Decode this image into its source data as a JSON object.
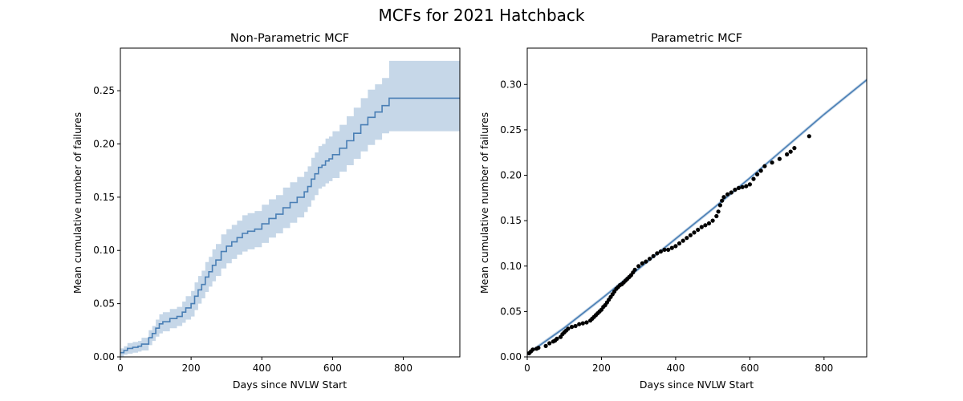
{
  "figure": {
    "title": "MCFs for 2021 Hatchback"
  },
  "colors": {
    "line": "#4a7fb5",
    "band": "#c6d7e8",
    "points": "#000000",
    "axis": "#000000"
  },
  "chart_data": [
    {
      "type": "line",
      "title": "Non-Parametric MCF",
      "xlabel": "Days since NVLW Start",
      "ylabel": "Mean cumulative number of failures",
      "xlim": [
        0,
        960
      ],
      "ylim": [
        0,
        0.29
      ],
      "xticks": [
        0,
        200,
        400,
        600,
        800
      ],
      "yticks": [
        0.0,
        0.05,
        0.1,
        0.15,
        0.2,
        0.25
      ],
      "xtick_labels": [
        "0",
        "200",
        "400",
        "600",
        "800"
      ],
      "ytick_labels": [
        "0.00",
        "0.05",
        "0.10",
        "0.15",
        "0.20",
        "0.25"
      ],
      "grid": false,
      "series": [
        {
          "style": "step",
          "x": [
            0,
            10,
            20,
            35,
            50,
            60,
            80,
            90,
            100,
            110,
            120,
            140,
            160,
            175,
            185,
            200,
            210,
            220,
            230,
            240,
            250,
            260,
            270,
            285,
            300,
            315,
            330,
            345,
            360,
            380,
            400,
            420,
            440,
            460,
            480,
            500,
            520,
            530,
            540,
            550,
            560,
            570,
            580,
            590,
            600,
            620,
            640,
            660,
            680,
            700,
            720,
            740,
            760,
            960
          ],
          "y": [
            0.004,
            0.006,
            0.008,
            0.009,
            0.01,
            0.012,
            0.018,
            0.022,
            0.027,
            0.031,
            0.033,
            0.036,
            0.038,
            0.042,
            0.046,
            0.05,
            0.057,
            0.063,
            0.068,
            0.075,
            0.08,
            0.086,
            0.091,
            0.099,
            0.104,
            0.108,
            0.112,
            0.116,
            0.118,
            0.12,
            0.125,
            0.13,
            0.134,
            0.14,
            0.145,
            0.15,
            0.155,
            0.16,
            0.167,
            0.172,
            0.178,
            0.18,
            0.184,
            0.186,
            0.19,
            0.196,
            0.203,
            0.21,
            0.218,
            0.225,
            0.23,
            0.236,
            0.243,
            0.243
          ],
          "lower": [
            0.0,
            0.002,
            0.003,
            0.004,
            0.005,
            0.006,
            0.011,
            0.015,
            0.019,
            0.022,
            0.024,
            0.027,
            0.029,
            0.032,
            0.035,
            0.038,
            0.044,
            0.05,
            0.055,
            0.061,
            0.066,
            0.071,
            0.076,
            0.083,
            0.088,
            0.092,
            0.096,
            0.099,
            0.101,
            0.103,
            0.107,
            0.112,
            0.116,
            0.121,
            0.126,
            0.131,
            0.136,
            0.141,
            0.147,
            0.152,
            0.158,
            0.16,
            0.163,
            0.165,
            0.168,
            0.174,
            0.18,
            0.186,
            0.193,
            0.199,
            0.204,
            0.21,
            0.212,
            0.212
          ],
          "upper": [
            0.008,
            0.01,
            0.013,
            0.014,
            0.015,
            0.018,
            0.025,
            0.029,
            0.035,
            0.04,
            0.042,
            0.045,
            0.047,
            0.052,
            0.057,
            0.062,
            0.07,
            0.076,
            0.081,
            0.089,
            0.094,
            0.101,
            0.106,
            0.115,
            0.12,
            0.124,
            0.128,
            0.133,
            0.135,
            0.137,
            0.143,
            0.148,
            0.152,
            0.159,
            0.164,
            0.169,
            0.174,
            0.179,
            0.187,
            0.192,
            0.198,
            0.2,
            0.205,
            0.207,
            0.212,
            0.218,
            0.226,
            0.234,
            0.243,
            0.251,
            0.256,
            0.262,
            0.278,
            0.278
          ]
        }
      ]
    },
    {
      "type": "scatter",
      "title": "Parametric MCF",
      "xlabel": "Days since NVLW Start",
      "ylabel": "Mean cumulative number of failures",
      "xlim": [
        0,
        915
      ],
      "ylim": [
        0,
        0.34
      ],
      "xticks": [
        0,
        200,
        400,
        600,
        800
      ],
      "yticks": [
        0.0,
        0.05,
        0.1,
        0.15,
        0.2,
        0.25,
        0.3
      ],
      "xtick_labels": [
        "0",
        "200",
        "400",
        "600",
        "800"
      ],
      "ytick_labels": [
        "0.00",
        "0.05",
        "0.10",
        "0.15",
        "0.20",
        "0.25",
        "0.30"
      ],
      "grid": false,
      "series": [
        {
          "style": "fit-line",
          "x": [
            0,
            100,
            200,
            300,
            400,
            500,
            600,
            700,
            800,
            915
          ],
          "y": [
            0.003,
            0.032,
            0.064,
            0.097,
            0.13,
            0.163,
            0.197,
            0.232,
            0.267,
            0.305
          ],
          "band_halfwidth": 0.002
        },
        {
          "style": "points",
          "x": [
            5,
            10,
            15,
            25,
            30,
            50,
            60,
            70,
            75,
            80,
            90,
            95,
            100,
            105,
            110,
            120,
            130,
            140,
            150,
            160,
            170,
            175,
            180,
            185,
            190,
            195,
            200,
            205,
            210,
            215,
            220,
            225,
            230,
            235,
            240,
            245,
            250,
            255,
            260,
            265,
            270,
            275,
            280,
            285,
            290,
            300,
            310,
            320,
            330,
            340,
            350,
            360,
            370,
            380,
            390,
            400,
            410,
            420,
            430,
            440,
            450,
            460,
            470,
            480,
            490,
            500,
            510,
            515,
            520,
            525,
            530,
            540,
            550,
            560,
            570,
            580,
            590,
            600,
            610,
            620,
            630,
            640,
            660,
            680,
            700,
            710,
            720,
            760
          ],
          "y": [
            0.004,
            0.006,
            0.008,
            0.009,
            0.01,
            0.012,
            0.015,
            0.017,
            0.018,
            0.02,
            0.022,
            0.025,
            0.027,
            0.029,
            0.031,
            0.033,
            0.034,
            0.036,
            0.037,
            0.038,
            0.04,
            0.042,
            0.044,
            0.046,
            0.048,
            0.05,
            0.052,
            0.055,
            0.057,
            0.06,
            0.063,
            0.066,
            0.069,
            0.072,
            0.075,
            0.077,
            0.079,
            0.08,
            0.082,
            0.084,
            0.086,
            0.088,
            0.09,
            0.093,
            0.096,
            0.1,
            0.103,
            0.105,
            0.108,
            0.111,
            0.114,
            0.116,
            0.118,
            0.118,
            0.12,
            0.122,
            0.125,
            0.128,
            0.131,
            0.134,
            0.137,
            0.14,
            0.143,
            0.145,
            0.147,
            0.15,
            0.155,
            0.16,
            0.167,
            0.172,
            0.176,
            0.179,
            0.181,
            0.184,
            0.186,
            0.187,
            0.188,
            0.19,
            0.196,
            0.201,
            0.205,
            0.21,
            0.214,
            0.218,
            0.223,
            0.226,
            0.23,
            0.243
          ]
        }
      ]
    }
  ]
}
